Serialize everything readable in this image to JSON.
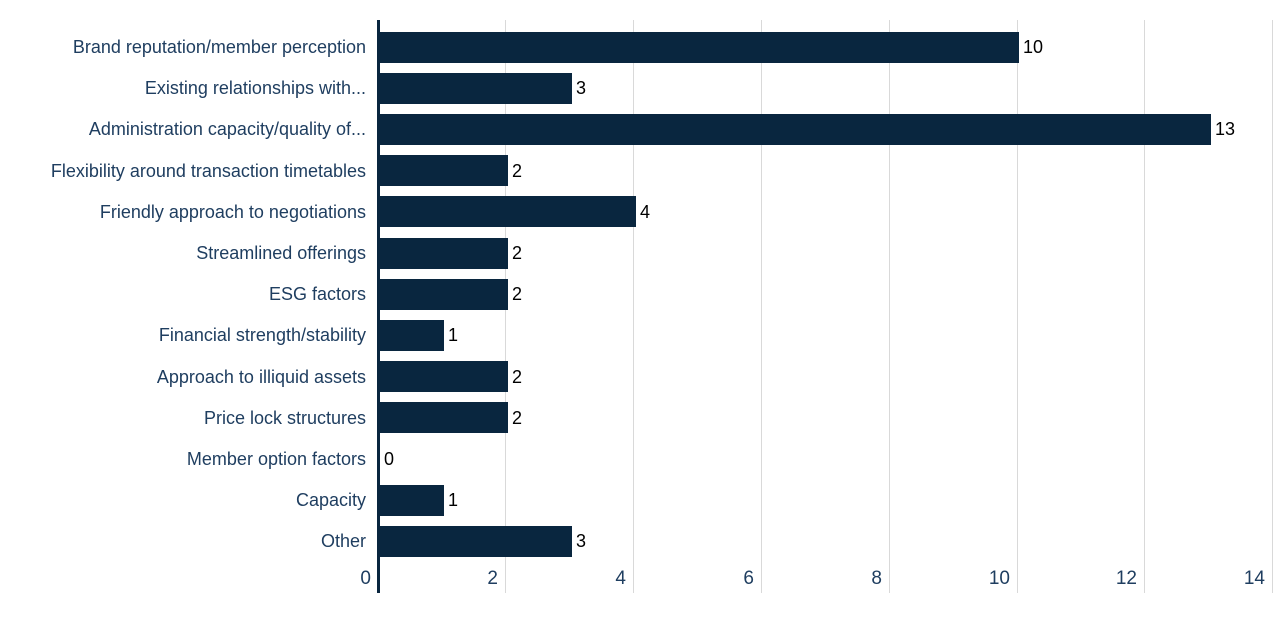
{
  "chart_data": {
    "type": "bar",
    "orientation": "horizontal",
    "title": "",
    "xlabel": "",
    "ylabel": "",
    "categories": [
      "Brand reputation/member perception",
      "Existing relationships with...",
      "Administration capacity/quality of...",
      "Flexibility around transaction timetables",
      "Friendly approach to negotiations",
      "Streamlined offerings",
      "ESG factors",
      "Financial strength/stability",
      "Approach to illiquid assets",
      "Price lock structures",
      "Member option factors",
      "Capacity",
      "Other"
    ],
    "values": [
      10,
      3,
      13,
      2,
      4,
      2,
      2,
      1,
      2,
      2,
      0,
      1,
      3
    ],
    "value_labels": [
      "10",
      "3",
      "13",
      "2",
      "4",
      "2",
      "2",
      "1",
      "2",
      "2",
      "0",
      "1",
      "3"
    ],
    "x_ticks": [
      0,
      2,
      4,
      6,
      8,
      10,
      12,
      14
    ],
    "xlim": [
      0,
      14
    ],
    "grid": "vertical-gridlines-on",
    "legend": "none",
    "colors": {
      "bar": "#09263f",
      "axis": "#09263f",
      "gridline": "#d9d9d9",
      "category_text": "#1f3e60",
      "tick_text": "#1f3e60",
      "value_text": "#000000",
      "background": "#ffffff"
    }
  }
}
